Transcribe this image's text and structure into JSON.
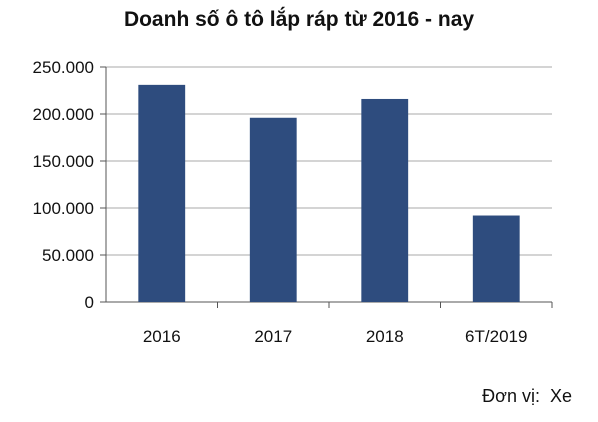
{
  "chart_data": {
    "type": "bar",
    "title": "Doanh số ô tô lắp ráp từ 2016 - nay",
    "categories": [
      "2016",
      "2017",
      "2018",
      "6T/2019"
    ],
    "values": [
      231000,
      196000,
      216000,
      92000
    ],
    "yticks": [
      "0",
      "50.000",
      "100.000",
      "150.000",
      "200.000",
      "250.000"
    ],
    "ylim": [
      0,
      250000
    ],
    "grid": true,
    "legend": "none",
    "unit_note": "Đơn vị:  Xe",
    "bar_color": "#2E4C7E",
    "grid_color": "#A9A9A9"
  }
}
